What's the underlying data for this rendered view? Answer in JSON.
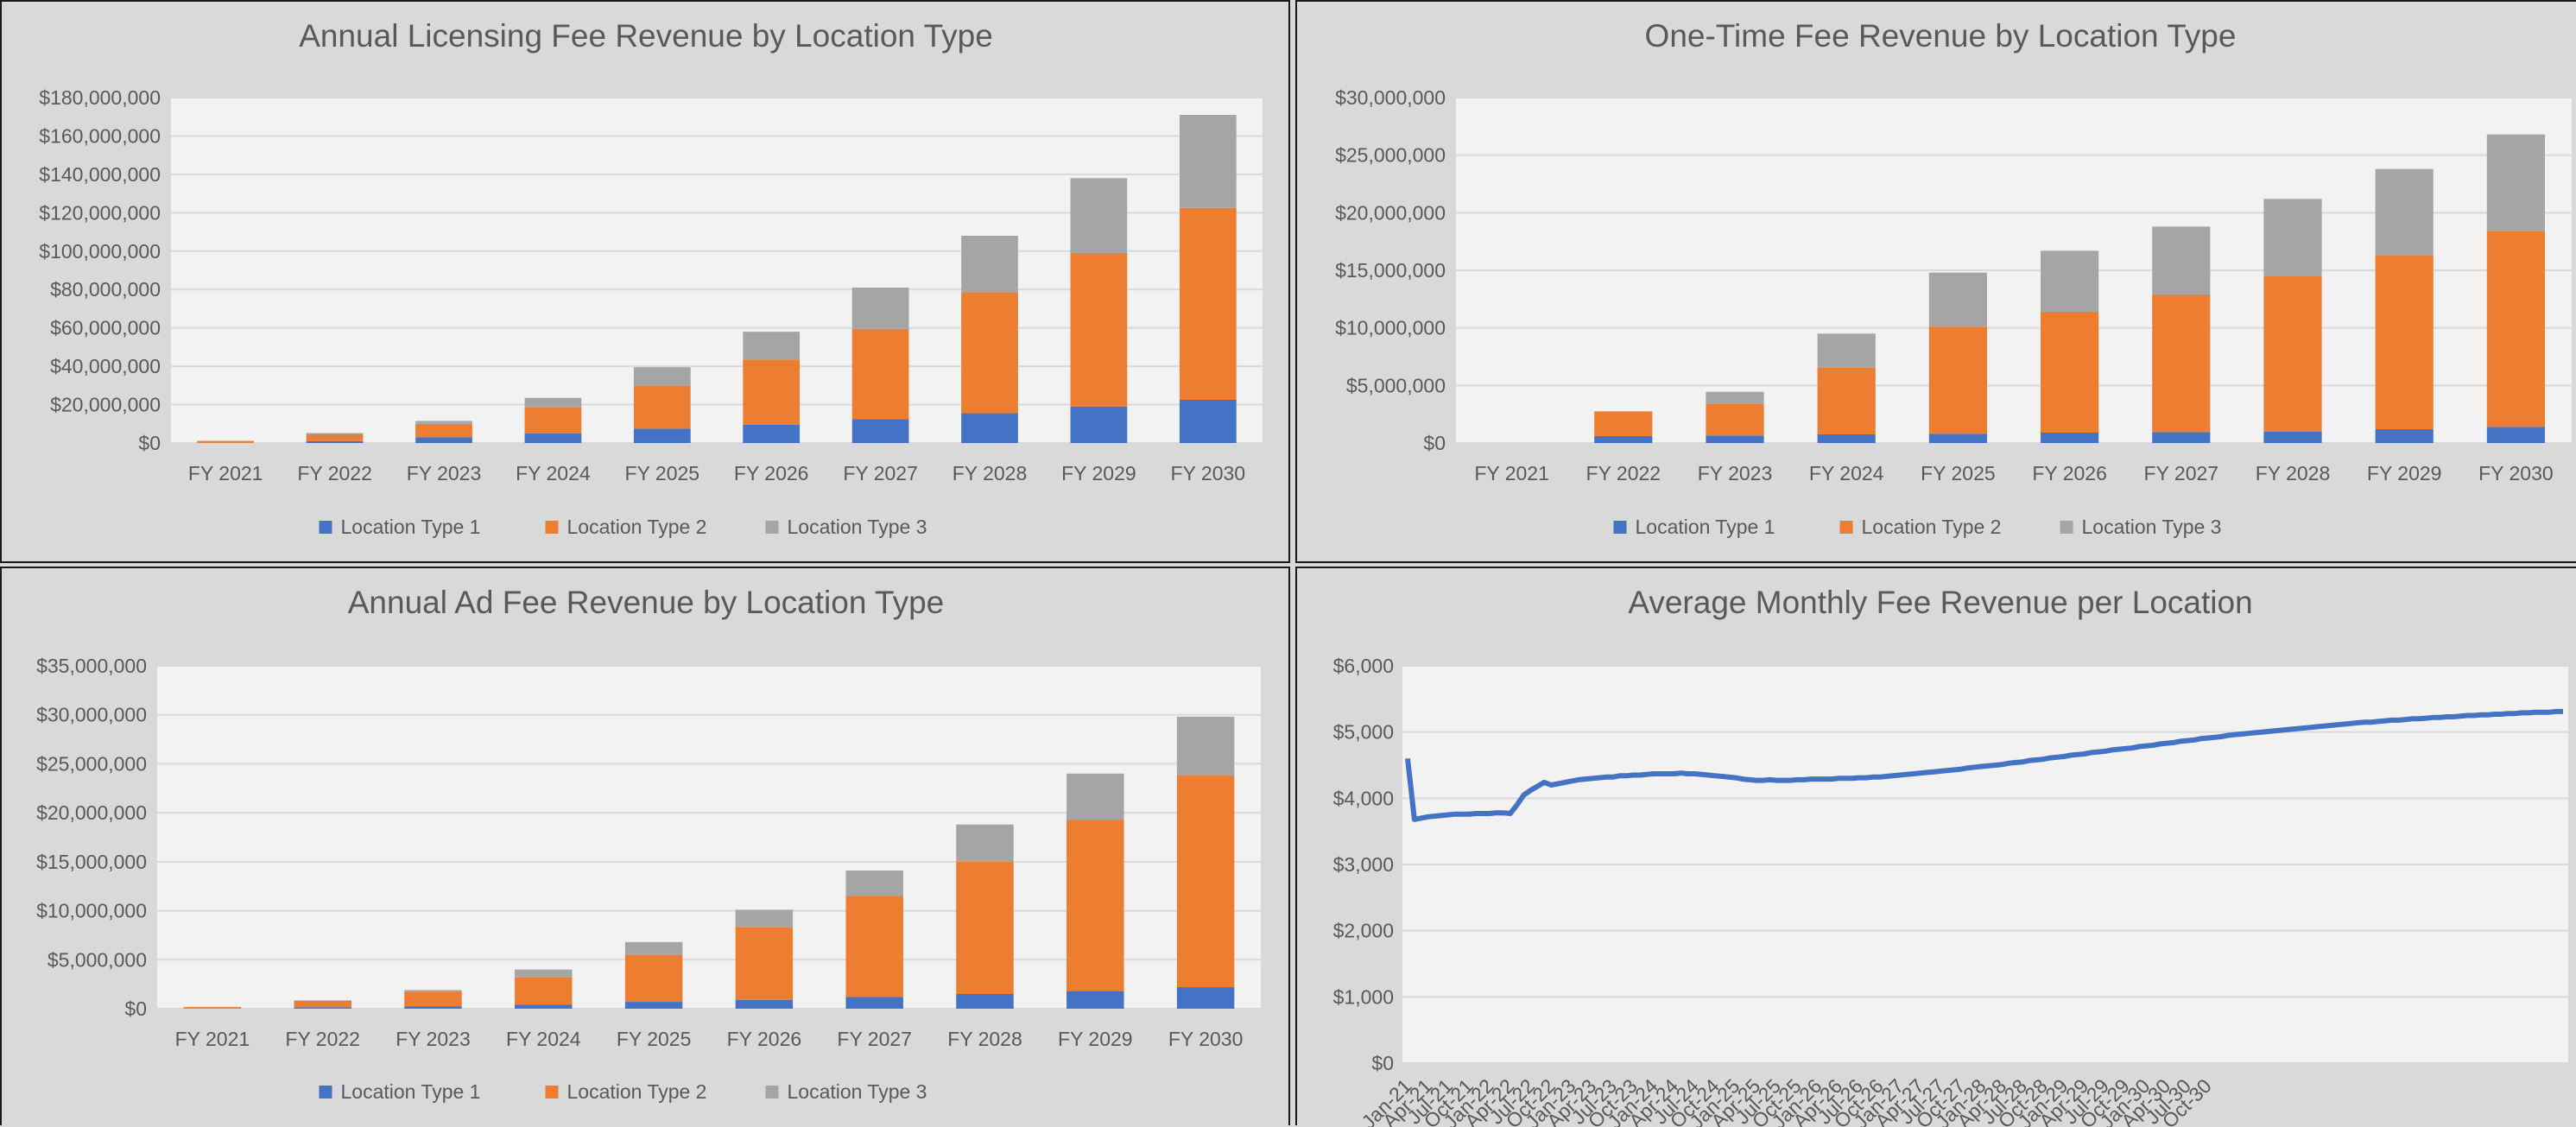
{
  "colors": {
    "series1": "#4472c4",
    "series2": "#ed7d31",
    "series3": "#a5a5a5",
    "plot_bg": "#f2f2f2",
    "panel_bg": "#d9d9d9",
    "grid": "#d9d9d9",
    "text": "#595959"
  },
  "chart_data": [
    {
      "type": "bar",
      "stacked": true,
      "title": "Annual Licensing Fee Revenue by Location Type",
      "categories": [
        "FY 2021",
        "FY 2022",
        "FY 2023",
        "FY 2024",
        "FY 2025",
        "FY 2026",
        "FY 2027",
        "FY 2028",
        "FY 2029",
        "FY 2030"
      ],
      "series": [
        {
          "name": "Location Type 1",
          "values": [
            100000,
            1000000,
            3000000,
            5000000,
            7500000,
            9500000,
            12500000,
            15500000,
            19000000,
            22500000
          ]
        },
        {
          "name": "Location Type 2",
          "values": [
            1000000,
            3500000,
            7000000,
            13500000,
            22500000,
            34000000,
            47000000,
            63000000,
            80000000,
            100000000
          ]
        },
        {
          "name": "Location Type 3",
          "values": [
            0,
            700000,
            1500000,
            5000000,
            9500000,
            14500000,
            21500000,
            29500000,
            39000000,
            48500000
          ]
        }
      ],
      "ylim": [
        0,
        180000000
      ],
      "yticks": [
        "$0",
        "$20,000,000",
        "$40,000,000",
        "$60,000,000",
        "$80,000,000",
        "$100,000,000",
        "$120,000,000",
        "$140,000,000",
        "$160,000,000",
        "$180,000,000"
      ],
      "grid": true,
      "legend_position": "bottom"
    },
    {
      "type": "bar",
      "stacked": true,
      "title": "One-Time Fee Revenue by Location Type",
      "categories": [
        "FY 2021",
        "FY 2022",
        "FY 2023",
        "FY 2024",
        "FY 2025",
        "FY 2026",
        "FY 2027",
        "FY 2028",
        "FY 2029",
        "FY 2030"
      ],
      "series": [
        {
          "name": "Location Type 1",
          "values": [
            0,
            600000,
            650000,
            750000,
            800000,
            900000,
            950000,
            1000000,
            1200000,
            1400000
          ]
        },
        {
          "name": "Location Type 2",
          "values": [
            0,
            2150000,
            2750000,
            5800000,
            9300000,
            10500000,
            11950000,
            13500000,
            15100000,
            17000000
          ]
        },
        {
          "name": "Location Type 3",
          "values": [
            0,
            0,
            1050000,
            2950000,
            4700000,
            5300000,
            5900000,
            6700000,
            7500000,
            8400000
          ]
        }
      ],
      "ylim": [
        0,
        30000000
      ],
      "yticks": [
        "$0",
        "$5,000,000",
        "$10,000,000",
        "$15,000,000",
        "$20,000,000",
        "$25,000,000",
        "$30,000,000"
      ],
      "grid": true,
      "legend_position": "bottom"
    },
    {
      "type": "bar",
      "stacked": true,
      "title": "Annual Ad Fee Revenue by Location Type",
      "categories": [
        "FY 2021",
        "FY 2022",
        "FY 2023",
        "FY 2024",
        "FY 2025",
        "FY 2026",
        "FY 2027",
        "FY 2028",
        "FY 2029",
        "FY 2030"
      ],
      "series": [
        {
          "name": "Location Type 1",
          "values": [
            20000,
            150000,
            250000,
            400000,
            700000,
            900000,
            1200000,
            1500000,
            1800000,
            2200000
          ]
        },
        {
          "name": "Location Type 2",
          "values": [
            150000,
            650000,
            1500000,
            2800000,
            4800000,
            7400000,
            10300000,
            13500000,
            17500000,
            21600000
          ]
        },
        {
          "name": "Location Type 3",
          "values": [
            0,
            50000,
            150000,
            800000,
            1300000,
            1800000,
            2600000,
            3800000,
            4700000,
            6000000
          ]
        }
      ],
      "ylim": [
        0,
        35000000
      ],
      "yticks": [
        "$0",
        "$5,000,000",
        "$10,000,000",
        "$15,000,000",
        "$20,000,000",
        "$25,000,000",
        "$30,000,000",
        "$35,000,000"
      ],
      "grid": true,
      "legend_position": "bottom"
    },
    {
      "type": "line",
      "title": "Average Monthly Fee Revenue per Location",
      "x_labels": [
        "Jan-21",
        "Apr-21",
        "Jul-21",
        "Oct-21",
        "Jan-22",
        "Apr-22",
        "Jul-22",
        "Oct-22",
        "Jan-23",
        "Apr-23",
        "Jul-23",
        "Oct-23",
        "Jan-24",
        "Apr-24",
        "Jul-24",
        "Oct-24",
        "Jan-25",
        "Apr-25",
        "Jul-25",
        "Oct-25",
        "Jan-26",
        "Apr-26",
        "Jul-26",
        "Oct-26",
        "Jan-27",
        "Apr-27",
        "Jul-27",
        "Oct-27",
        "Jan-28",
        "Apr-28",
        "Jul-28",
        "Oct-28",
        "Jan-29",
        "Apr-29",
        "Jul-29",
        "Oct-29",
        "Jan-30",
        "Apr-30",
        "Jul-30",
        "Oct-30"
      ],
      "x_label_interval_months": 3,
      "series": [
        {
          "values": [
            4600,
            3680,
            3700,
            3720,
            3730,
            3740,
            3750,
            3760,
            3760,
            3760,
            3770,
            3770,
            3770,
            3780,
            3780,
            3770,
            3900,
            4050,
            4120,
            4180,
            4240,
            4200,
            4220,
            4240,
            4260,
            4280,
            4290,
            4300,
            4310,
            4320,
            4320,
            4340,
            4340,
            4350,
            4350,
            4360,
            4370,
            4370,
            4370,
            4370,
            4380,
            4370,
            4370,
            4360,
            4350,
            4340,
            4330,
            4320,
            4310,
            4290,
            4280,
            4270,
            4270,
            4280,
            4270,
            4270,
            4270,
            4280,
            4280,
            4290,
            4290,
            4290,
            4290,
            4300,
            4300,
            4300,
            4310,
            4310,
            4320,
            4320,
            4330,
            4340,
            4350,
            4360,
            4370,
            4380,
            4390,
            4400,
            4410,
            4420,
            4430,
            4440,
            4460,
            4470,
            4480,
            4490,
            4500,
            4510,
            4530,
            4540,
            4550,
            4570,
            4580,
            4590,
            4610,
            4620,
            4630,
            4650,
            4660,
            4670,
            4690,
            4700,
            4710,
            4730,
            4740,
            4750,
            4760,
            4780,
            4790,
            4800,
            4820,
            4830,
            4840,
            4860,
            4870,
            4880,
            4900,
            4910,
            4920,
            4930,
            4950,
            4960,
            4970,
            4980,
            4990,
            5000,
            5010,
            5020,
            5030,
            5040,
            5050,
            5060,
            5070,
            5080,
            5090,
            5100,
            5110,
            5120,
            5130,
            5140,
            5150,
            5150,
            5160,
            5170,
            5180,
            5180,
            5190,
            5200,
            5200,
            5210,
            5220,
            5220,
            5230,
            5230,
            5240,
            5250,
            5250,
            5260,
            5260,
            5270,
            5270,
            5280,
            5280,
            5290,
            5290,
            5300,
            5300,
            5300,
            5310,
            5310
          ]
        }
      ],
      "ylim": [
        0,
        6000
      ],
      "yticks": [
        "$0",
        "$1,000",
        "$2,000",
        "$3,000",
        "$4,000",
        "$5,000",
        "$6,000"
      ],
      "grid": true
    }
  ]
}
